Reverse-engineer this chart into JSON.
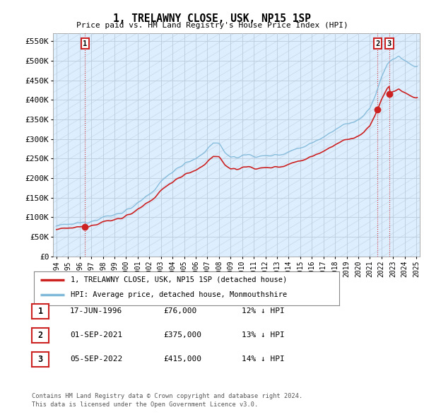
{
  "title": "1, TRELAWNY CLOSE, USK, NP15 1SP",
  "subtitle": "Price paid vs. HM Land Registry's House Price Index (HPI)",
  "ylabel_ticks": [
    "£0",
    "£50K",
    "£100K",
    "£150K",
    "£200K",
    "£250K",
    "£300K",
    "£350K",
    "£400K",
    "£450K",
    "£500K",
    "£550K"
  ],
  "ytick_vals": [
    0,
    50000,
    100000,
    150000,
    200000,
    250000,
    300000,
    350000,
    400000,
    450000,
    500000,
    550000
  ],
  "ylim": [
    0,
    570000
  ],
  "xlim_start": 1993.7,
  "xlim_end": 2025.3,
  "xticks": [
    1994,
    1995,
    1996,
    1997,
    1998,
    1999,
    2000,
    2001,
    2002,
    2003,
    2004,
    2005,
    2006,
    2007,
    2008,
    2009,
    2010,
    2011,
    2012,
    2013,
    2014,
    2015,
    2016,
    2017,
    2018,
    2019,
    2020,
    2021,
    2022,
    2023,
    2024,
    2025
  ],
  "hpi_color": "#7fb8d8",
  "price_color": "#cc2222",
  "marker_color": "#cc2222",
  "vline_color": "#cc2222",
  "sale_points": [
    {
      "year": 1996.46,
      "price": 76000,
      "label": "1"
    },
    {
      "year": 2021.67,
      "price": 375000,
      "label": "2"
    },
    {
      "year": 2022.67,
      "price": 415000,
      "label": "3"
    }
  ],
  "legend_entries": [
    {
      "color": "#cc2222",
      "label": "1, TRELAWNY CLOSE, USK, NP15 1SP (detached house)"
    },
    {
      "color": "#7fb8d8",
      "label": "HPI: Average price, detached house, Monmouthshire"
    }
  ],
  "table_rows": [
    {
      "num": "1",
      "date": "17-JUN-1996",
      "price": "£76,000",
      "hpi": "12% ↓ HPI"
    },
    {
      "num": "2",
      "date": "01-SEP-2021",
      "price": "£375,000",
      "hpi": "13% ↓ HPI"
    },
    {
      "num": "3",
      "date": "05-SEP-2022",
      "price": "£415,000",
      "hpi": "14% ↓ HPI"
    }
  ],
  "footer": "Contains HM Land Registry data © Crown copyright and database right 2024.\nThis data is licensed under the Open Government Licence v3.0.",
  "bg_color": "#ffffff",
  "grid_color": "#bbccdd",
  "chart_bg": "#ddeeff"
}
